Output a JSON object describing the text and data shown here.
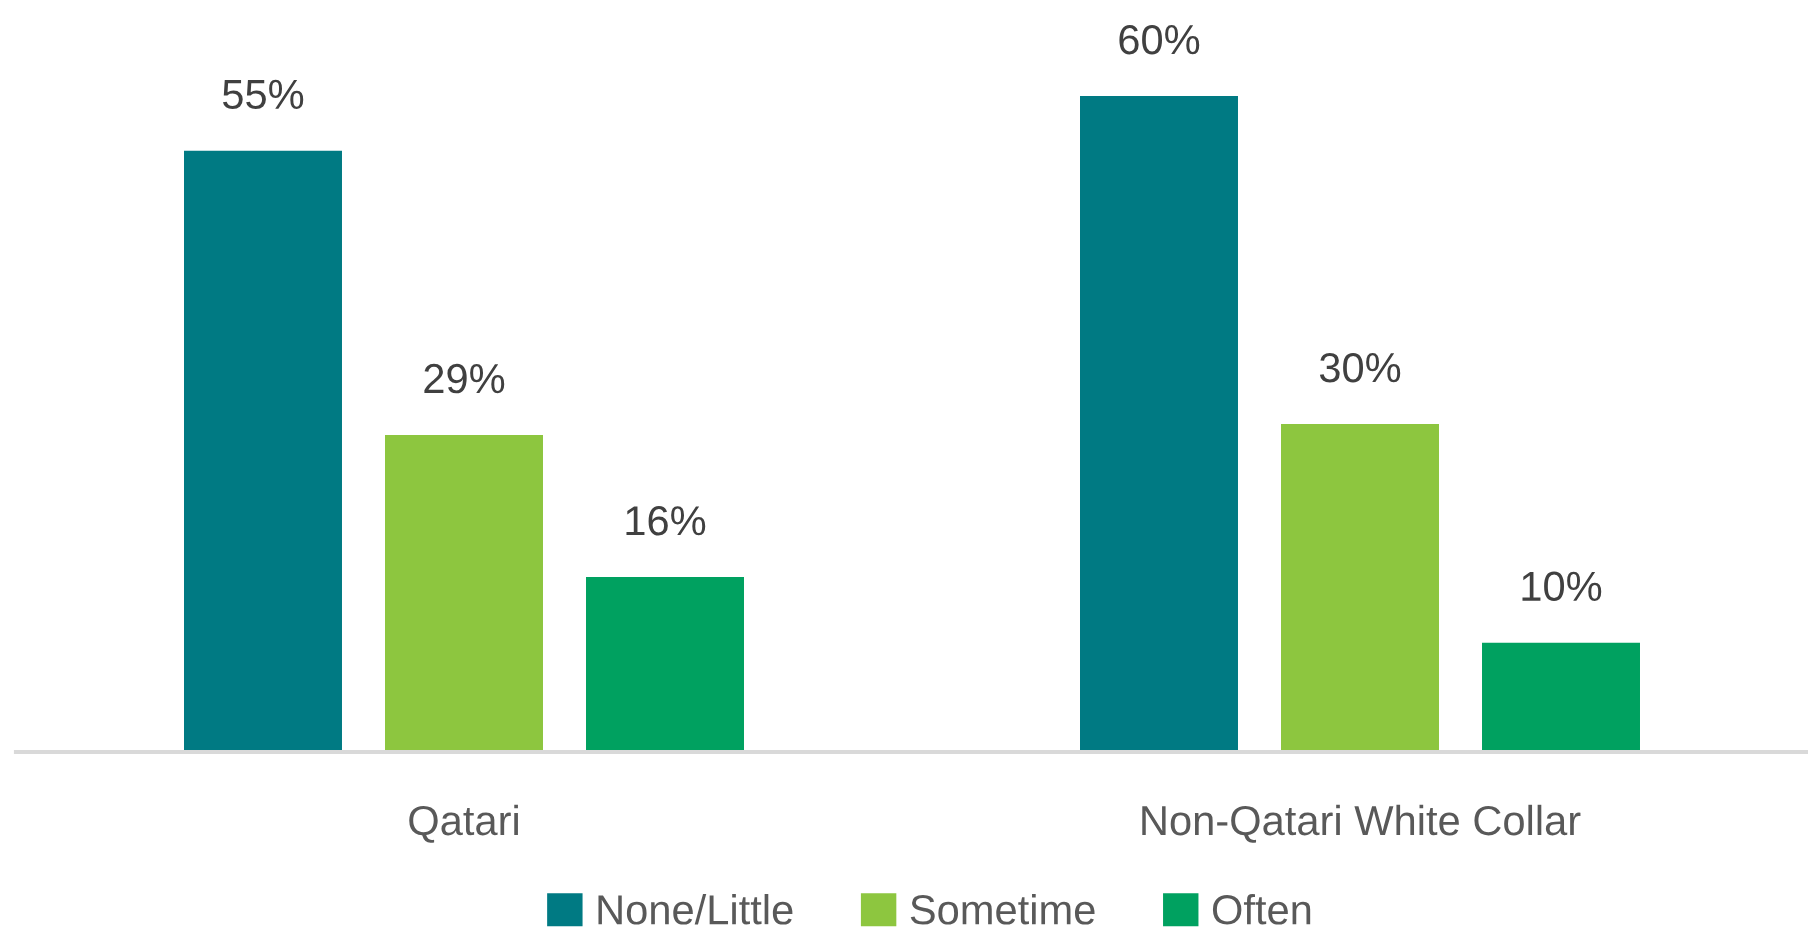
{
  "chart_data": {
    "type": "bar",
    "categories": [
      "Qatari",
      "Non-Qatari White Collar"
    ],
    "series": [
      {
        "name": "None/Little",
        "color": "#007a83",
        "values": [
          55,
          60
        ],
        "value_labels": [
          "55%",
          "60%"
        ]
      },
      {
        "name": "Sometime",
        "color": "#8dc63f",
        "values": [
          29,
          30
        ],
        "value_labels": [
          "29%",
          "30%"
        ]
      },
      {
        "name": "Often",
        "color": "#00a160",
        "values": [
          16,
          10
        ],
        "value_labels": [
          "16%",
          "10%"
        ]
      }
    ],
    "legend": "bottom"
  }
}
